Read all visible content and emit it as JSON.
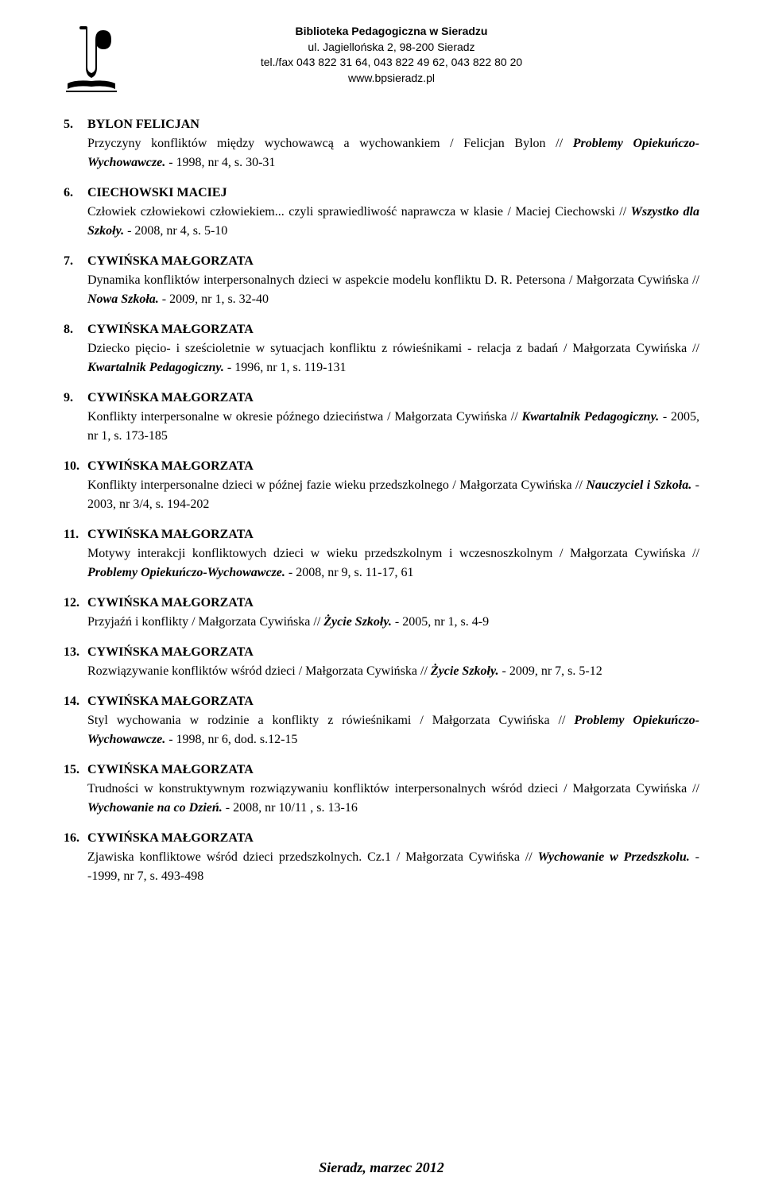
{
  "header": {
    "line1": "Biblioteka Pedagogiczna w Sieradzu",
    "line2": "ul. Jagiellońska 2, 98-200 Sieradz",
    "line3": "tel./fax 043 822 31 64, 043 822 49 62, 043 822 80 20",
    "line4": "www.bpsieradz.pl"
  },
  "entries": [
    {
      "num": "5.",
      "author": "BYLON FELICJAN",
      "body_pre": "Przyczyny konfliktów między wychowawcą a wychowankiem / Felicjan Bylon // ",
      "italic": "Problemy Opiekuńczo-Wychowawcze.",
      "body_post": " - 1998, nr 4, s. 30-31"
    },
    {
      "num": "6.",
      "author": "CIECHOWSKI MACIEJ",
      "body_pre": "Człowiek człowiekowi człowiekiem... czyli sprawiedliwość naprawcza w klasie / Maciej Ciechowski // ",
      "italic": "Wszystko dla Szkoły.",
      "body_post": " - 2008, nr 4, s. 5-10"
    },
    {
      "num": "7.",
      "author": "CYWIŃSKA MAŁGORZATA",
      "body_pre": "Dynamika konfliktów interpersonalnych dzieci w aspekcie modelu konfliktu D. R. Petersona / Małgorzata Cywińska // ",
      "italic": "Nowa Szkoła.",
      "body_post": " - 2009, nr 1, s. 32-40"
    },
    {
      "num": "8.",
      "author": "CYWIŃSKA MAŁGORZATA",
      "body_pre": "Dziecko pięcio- i sześcioletnie w sytuacjach konfliktu z rówieśnikami - relacja z badań / Małgorzata Cywińska // ",
      "italic": "Kwartalnik Pedagogiczny.",
      "body_post": " - 1996, nr 1, s. 119-131"
    },
    {
      "num": "9.",
      "author": "CYWIŃSKA MAŁGORZATA",
      "body_pre": "Konflikty interpersonalne w okresie późnego dzieciństwa / Małgorzata Cywińska // ",
      "italic": "Kwartalnik Pedagogiczny.",
      "body_post": " - 2005, nr 1, s. 173-185"
    },
    {
      "num": "10.",
      "author": "CYWIŃSKA MAŁGORZATA",
      "body_pre": "Konflikty interpersonalne dzieci w późnej fazie wieku przedszkolnego / Małgorzata Cywińska // ",
      "italic": "Nauczyciel i Szkoła.",
      "body_post": " - 2003, nr 3/4, s. 194-202"
    },
    {
      "num": "11.",
      "author": "CYWIŃSKA MAŁGORZATA",
      "body_pre": "Motywy interakcji konfliktowych dzieci w wieku przedszkolnym i wczesnoszkolnym / Małgorzata Cywińska // ",
      "italic": "Problemy Opiekuńczo-Wychowawcze.",
      "body_post": " - 2008, nr 9, s. 11-17, 61"
    },
    {
      "num": "12.",
      "author": "CYWIŃSKA MAŁGORZATA",
      "body_pre": "Przyjaźń i konflikty / Małgorzata Cywińska // ",
      "italic": "Życie Szkoły.",
      "body_post": " - 2005, nr 1, s. 4-9"
    },
    {
      "num": "13.",
      "author": "CYWIŃSKA MAŁGORZATA",
      "body_pre": "Rozwiązywanie konfliktów wśród dzieci / Małgorzata Cywińska // ",
      "italic": "Życie Szkoły.",
      "body_post": " - 2009, nr 7, s. 5-12"
    },
    {
      "num": "14.",
      "author": "CYWIŃSKA MAŁGORZATA",
      "body_pre": "Styl wychowania w rodzinie a konflikty z rówieśnikami / Małgorzata Cywińska // ",
      "italic": "Problemy Opiekuńczo-Wychowawcze.",
      "body_post": " - 1998, nr 6, dod. s.12-15"
    },
    {
      "num": "15.",
      "author": "CYWIŃSKA MAŁGORZATA",
      "body_pre": "Trudności w konstruktywnym rozwiązywaniu konfliktów interpersonalnych wśród dzieci / Małgorzata Cywińska // ",
      "italic": "Wychowanie na co Dzień.",
      "body_post": " - 2008, nr 10/11 , s. 13-16"
    },
    {
      "num": "16.",
      "author": "CYWIŃSKA MAŁGORZATA",
      "body_pre": "Zjawiska konfliktowe wśród dzieci przedszkolnych. Cz.1 / Małgorzata Cywińska // ",
      "italic": "Wychowanie w Przedszkolu.",
      "body_post": " --1999, nr 7, s. 493-498"
    }
  ],
  "footer": "Sieradz, marzec 2012"
}
